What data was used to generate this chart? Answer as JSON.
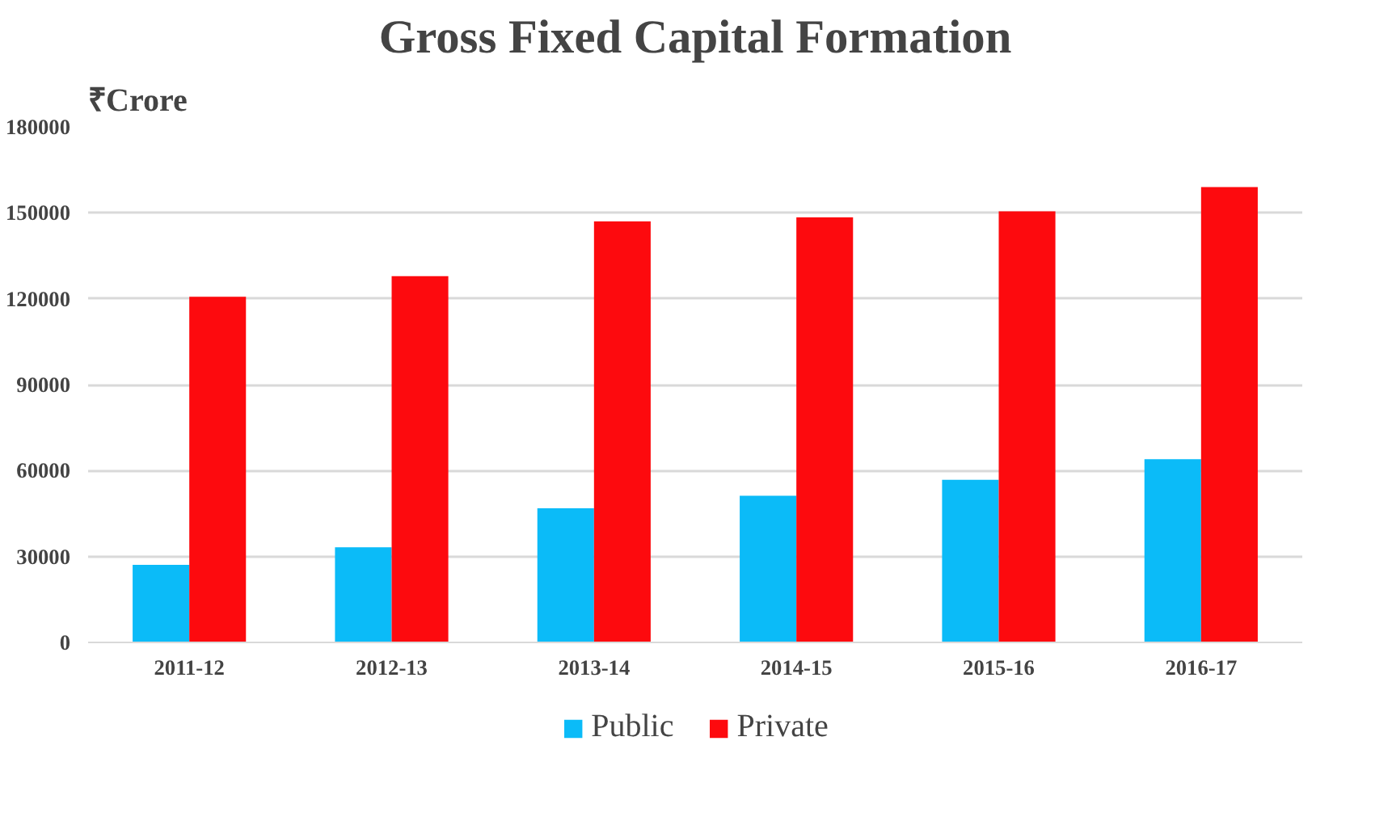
{
  "chart_data": {
    "type": "bar",
    "title": "Gross Fixed Capital Formation",
    "ylabel": "₹Crore",
    "categories": [
      "2011-12",
      "2012-13",
      "2013-14",
      "2014-15",
      "2015-16",
      "2016-17"
    ],
    "series": [
      {
        "name": "Public",
        "color": "#0bbbf8",
        "values": [
          27100,
          33200,
          46800,
          51200,
          56800,
          64000
        ]
      },
      {
        "name": "Private",
        "color": "#fd0a0e",
        "values": [
          120700,
          127900,
          147000,
          148400,
          150500,
          159000
        ]
      }
    ],
    "ylim": [
      0,
      180000
    ],
    "yticks": [
      0,
      30000,
      60000,
      90000,
      120000,
      150000,
      180000
    ],
    "grid": "y",
    "legend": "bottom"
  }
}
